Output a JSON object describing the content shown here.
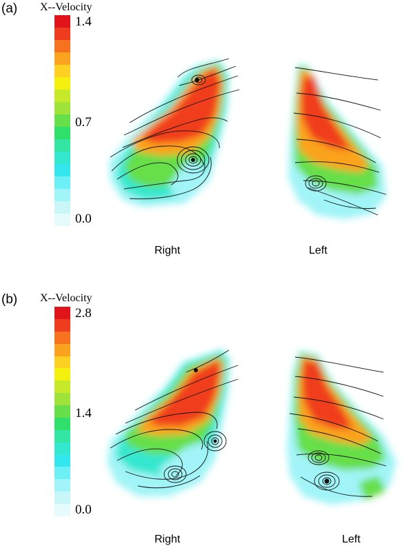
{
  "panels": [
    {
      "label": "(a)",
      "colorbar": {
        "title": "X--Velocity",
        "max": "1.4",
        "mid": "0.7",
        "min": "0.0"
      },
      "left_label": "Right",
      "right_label": "Left"
    },
    {
      "label": "(b)",
      "colorbar": {
        "title": "X--Velocity",
        "max": "2.8",
        "mid": "1.4",
        "min": "0.0"
      },
      "left_label": "Right",
      "right_label": "Left"
    }
  ],
  "colorbar_colors": [
    "#e0141a",
    "#f03c1e",
    "#f7721f",
    "#fba31e",
    "#fed021",
    "#f5f10f",
    "#c6ea29",
    "#9ee23a",
    "#66df4a",
    "#2fe06b",
    "#34e6a4",
    "#34e7cf",
    "#34e7ef",
    "#6df0f5",
    "#a1f4f7",
    "#c9f7f9",
    "#e6fbfc"
  ]
}
